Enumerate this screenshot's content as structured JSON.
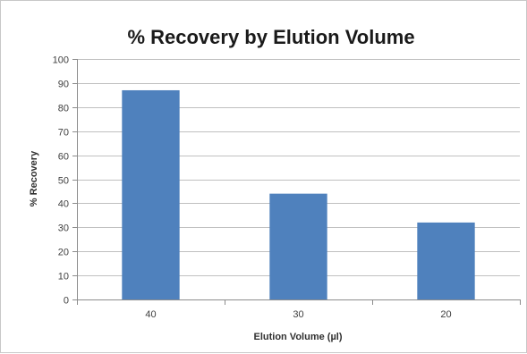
{
  "chart_data": {
    "type": "bar",
    "title": "% Recovery by Elution Volume",
    "xlabel": "Elution Volume (µl)",
    "ylabel": "% Recovery",
    "categories": [
      "40",
      "30",
      "20"
    ],
    "series": [
      {
        "values": [
          87,
          44,
          32
        ]
      }
    ],
    "ylim": [
      0,
      100
    ],
    "ytick_step": 10,
    "grid": true,
    "legend": "none",
    "colors": {
      "bar": "#4f81bd",
      "grid": "#c0c0c0",
      "axis": "#8c8c8c"
    }
  }
}
